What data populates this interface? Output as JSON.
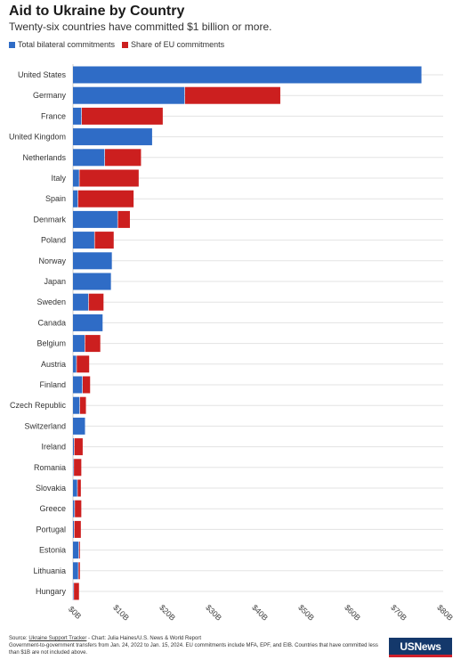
{
  "title": "Aid to Ukraine by Country",
  "subtitle": "Twenty-six countries have committed $1 billion or more.",
  "legend": {
    "bilateral": "Total bilateral commitments",
    "eu": "Share of EU commitments"
  },
  "colors": {
    "bilateral": "#2f6cc6",
    "eu": "#cc1f1f",
    "grid": "#e3e3e3"
  },
  "chart_data": {
    "type": "bar",
    "orientation": "horizontal",
    "stacked": true,
    "categories": [
      "United States",
      "Germany",
      "France",
      "United Kingdom",
      "Netherlands",
      "Italy",
      "Spain",
      "Denmark",
      "Poland",
      "Norway",
      "Japan",
      "Sweden",
      "Canada",
      "Belgium",
      "Austria",
      "Finland",
      "Czech Republic",
      "Switzerland",
      "Ireland",
      "Romania",
      "Slovakia",
      "Greece",
      "Portugal",
      "Estonia",
      "Lithuania",
      "Hungary"
    ],
    "series": [
      {
        "name": "Total bilateral commitments",
        "values": [
          75.3,
          24.1,
          1.8,
          17.1,
          6.8,
          1.3,
          1.0,
          9.6,
          4.6,
          8.4,
          8.2,
          3.3,
          6.4,
          2.5,
          0.7,
          2.0,
          1.4,
          2.6,
          0.2,
          0.1,
          0.9,
          0.3,
          0.2,
          1.2,
          1.1,
          0.1
        ]
      },
      {
        "name": "Share of EU commitments",
        "values": [
          0,
          20.7,
          17.6,
          0,
          7.9,
          12.9,
          12.1,
          2.7,
          4.2,
          0,
          0,
          3.3,
          0,
          3.4,
          2.8,
          1.7,
          1.4,
          0,
          1.9,
          1.7,
          0.8,
          1.5,
          1.5,
          0.3,
          0.4,
          1.2
        ]
      }
    ],
    "xlim": [
      0,
      80
    ],
    "xticks": [
      "$0B",
      "$10B",
      "$20B",
      "$30B",
      "$40B",
      "$50B",
      "$60B",
      "$70B",
      "$80B"
    ],
    "grid": true,
    "legend_position": "top-left"
  },
  "footer": {
    "source_prefix": "Source: ",
    "source_link": "Ukraine Support Tracker",
    "source_rest": " - Chart: Julia Haines/U.S. News & World Report",
    "note": "Government-to-government transfers from Jan. 24, 2022 to Jan. 15, 2024. EU commitments include MFA, EPF, and EIB. Countries that have committed less than $1B are not included above."
  },
  "logo": {
    "text": "USNews"
  }
}
